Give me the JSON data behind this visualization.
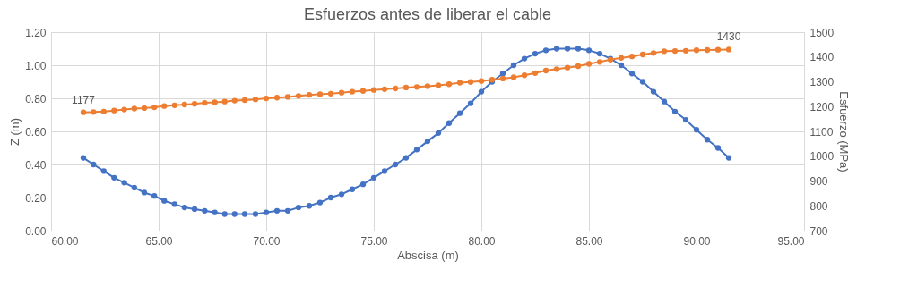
{
  "chart_data": {
    "type": "line",
    "title": "Esfuerzos antes de liberar el cable",
    "xlabel": "Abscisa (m)",
    "ylabel": "Z (m)",
    "y2label": "Esfuerzo (MPa)",
    "x": [
      61.5,
      61.97,
      62.45,
      62.93,
      63.4,
      63.87,
      64.33,
      64.8,
      65.26,
      65.74,
      66.2,
      66.67,
      67.14,
      67.61,
      68.07,
      68.53,
      69.0,
      69.5,
      70.0,
      70.5,
      71.0,
      71.5,
      72.0,
      72.5,
      73.0,
      73.5,
      74.0,
      74.5,
      75.0,
      75.5,
      76.0,
      76.5,
      77.0,
      77.5,
      78.0,
      78.5,
      79.0,
      79.5,
      80.0,
      80.5,
      81.0,
      81.5,
      82.0,
      82.5,
      83.0,
      83.5,
      84.0,
      84.5,
      85.0,
      85.5,
      86.0,
      86.5,
      87.0,
      87.5,
      88.0,
      88.5,
      89.0,
      89.5,
      90.0,
      90.5,
      91.0,
      91.5
    ],
    "series": [
      {
        "color": "#4472c4",
        "values": [
          0.44,
          0.4,
          0.36,
          0.32,
          0.29,
          0.26,
          0.23,
          0.21,
          0.18,
          0.16,
          0.14,
          0.13,
          0.12,
          0.11,
          0.1,
          0.1,
          0.1,
          0.1,
          0.11,
          0.12,
          0.12,
          0.14,
          0.15,
          0.17,
          0.2,
          0.22,
          0.25,
          0.28,
          0.32,
          0.36,
          0.4,
          0.44,
          0.49,
          0.54,
          0.59,
          0.65,
          0.71,
          0.77,
          0.84,
          0.9,
          0.95,
          1.0,
          1.04,
          1.07,
          1.09,
          1.1,
          1.1,
          1.1,
          1.09,
          1.07,
          1.04,
          1.0,
          0.95,
          0.9,
          0.84,
          0.78,
          0.72,
          0.67,
          0.61,
          0.55,
          0.5,
          0.44
        ]
      },
      {
        "color": "#ed7d31",
        "axis": "y2",
        "values": [
          1177,
          1178,
          1180,
          1184,
          1188,
          1192,
          1194,
          1197,
          1202,
          1205,
          1208,
          1211,
          1215,
          1217,
          1220,
          1224,
          1226,
          1229,
          1233,
          1236,
          1239,
          1243,
          1247,
          1250,
          1252,
          1256,
          1260,
          1263,
          1267,
          1270,
          1273,
          1277,
          1279,
          1282,
          1286,
          1290,
          1296,
          1299,
          1303,
          1308,
          1313,
          1318,
          1326,
          1335,
          1345,
          1351,
          1357,
          1363,
          1372,
          1380,
          1389,
          1396,
          1402,
          1410,
          1416,
          1423,
          1424,
          1425,
          1427,
          1428,
          1429,
          1430
        ],
        "value_labels": [
          "1177",
          null,
          null,
          null,
          null,
          null,
          null,
          null,
          null,
          null,
          null,
          null,
          null,
          null,
          null,
          null,
          null,
          null,
          null,
          null,
          null,
          null,
          null,
          null,
          null,
          null,
          null,
          null,
          null,
          null,
          null,
          null,
          null,
          null,
          null,
          null,
          null,
          null,
          null,
          null,
          null,
          null,
          null,
          null,
          null,
          null,
          null,
          null,
          null,
          null,
          null,
          null,
          null,
          null,
          null,
          null,
          null,
          null,
          null,
          null,
          null,
          "1430"
        ]
      }
    ],
    "xlim": [
      60,
      95
    ],
    "xticks": [
      {
        "value": 60,
        "label": "60.00"
      },
      {
        "value": 65,
        "label": "65.00"
      },
      {
        "value": 70,
        "label": "70.00"
      },
      {
        "value": 75,
        "label": "75.00"
      },
      {
        "value": 80,
        "label": "80.00"
      },
      {
        "value": 85,
        "label": "85.00"
      },
      {
        "value": 90,
        "label": "90.00"
      },
      {
        "value": 95,
        "label": "95.00"
      }
    ],
    "ylim": [
      0,
      1.2
    ],
    "yticks": [
      {
        "value": 0,
        "label": "0.00"
      },
      {
        "value": 0.2,
        "label": "0.20"
      },
      {
        "value": 0.4,
        "label": "0.40"
      },
      {
        "value": 0.6,
        "label": "0.60"
      },
      {
        "value": 0.8,
        "label": "0.80"
      },
      {
        "value": 1.0,
        "label": "1.00"
      },
      {
        "value": 1.2,
        "label": "1.20"
      }
    ],
    "y2lim": [
      700,
      1500
    ],
    "y2ticks": [
      700,
      800,
      900,
      1000,
      1100,
      1200,
      1300,
      1400,
      1500
    ],
    "grid": true,
    "marker": "circle",
    "line_style": "solid"
  }
}
